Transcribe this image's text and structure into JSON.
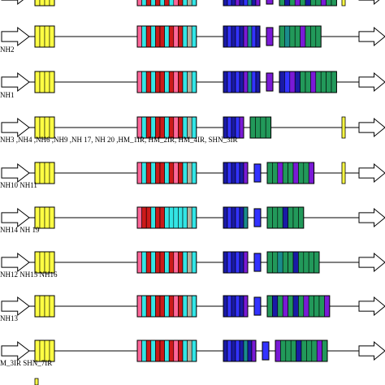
{
  "colors": {
    "yellow": "#ffff44",
    "cyan": "#33e5e5",
    "red": "#cc1a1a",
    "pink": "#ff6699",
    "gray": "#b3b3a0",
    "navy": "#1a1aa6",
    "blue": "#3333ff",
    "purple": "#7a1ad6",
    "green": "#22995a",
    "teal": "#1a8c8c",
    "line": "#000000"
  },
  "rows": [
    {
      "label": "",
      "yellow": [
        1,
        1,
        1,
        1
      ],
      "b1": [
        "pink",
        "cyan",
        "red",
        "cyan",
        "red",
        "cyan",
        "red",
        "cyan",
        "pink",
        "red",
        "cyan",
        "gray",
        "cyan"
      ],
      "b2": [
        "navy",
        "blue",
        "navy",
        "purple",
        "navy",
        "blue",
        "teal",
        "navy",
        "purple"
      ],
      "b3": [
        "purple"
      ],
      "b4": [
        "green",
        "navy",
        "green",
        "purple",
        "green",
        "navy",
        "green",
        "green",
        "purple",
        "green",
        "green"
      ],
      "tiny": true
    },
    {
      "label": "NH2",
      "b1": [
        "pink",
        "cyan",
        "red",
        "cyan",
        "red",
        "red",
        "cyan",
        "red",
        "pink",
        "red",
        "cyan",
        "gray",
        "cyan"
      ],
      "b2": [
        "navy",
        "blue",
        "navy",
        "blue",
        "navy",
        "purple",
        "teal",
        "blue",
        "navy"
      ],
      "b3": [
        "purple"
      ],
      "b4": [
        "green",
        "teal",
        "green",
        "green",
        "purple",
        "green",
        "green",
        "green"
      ]
    },
    {
      "label": "NH1",
      "b1": [
        "pink",
        "cyan",
        "red",
        "cyan",
        "red",
        "red",
        "cyan",
        "red",
        "pink",
        "red",
        "cyan",
        "gray",
        "cyan"
      ],
      "b2": [
        "navy",
        "blue",
        "navy",
        "blue",
        "navy",
        "purple",
        "teal",
        "blue",
        "navy"
      ],
      "b3": [
        "purple"
      ],
      "b4": [
        "navy",
        "blue",
        "purple",
        "navy",
        "green",
        "green",
        "purple",
        "green",
        "green",
        "green",
        "green"
      ]
    },
    {
      "label": "NH3 ,NH4 ,NH6 ,NH9 ,NH 17, NH 20 ,HM_1IR, HM_2IR, HM_4IR, SHN_3IR",
      "b1": [
        "pink",
        "cyan",
        "red",
        "cyan",
        "red",
        "red",
        "cyan",
        "red",
        "pink",
        "red",
        "cyan",
        "gray",
        "cyan"
      ],
      "b2": [
        "navy",
        "blue",
        "navy",
        "blue",
        "purple"
      ],
      "b4": [
        "green",
        "green",
        "green",
        "green"
      ],
      "tiny": true
    },
    {
      "label": "NH10 NH11",
      "b1": [
        "pink",
        "cyan",
        "red",
        "cyan",
        "red",
        "red",
        "cyan",
        "red",
        "pink",
        "red",
        "cyan",
        "gray",
        "cyan"
      ],
      "b2": [
        "navy",
        "blue",
        "navy",
        "blue",
        "navy",
        "purple"
      ],
      "b3": [
        "blue"
      ],
      "b4": [
        "green",
        "green",
        "purple",
        "green",
        "green",
        "purple",
        "green",
        "green",
        "purple"
      ],
      "tiny": true
    },
    {
      "label": "NH14 NH 19",
      "b1": [
        "pink",
        "red",
        "red",
        "cyan",
        "red",
        "red",
        "cyan",
        "cyan",
        "cyan",
        "cyan",
        "cyan",
        "gray",
        "cyan"
      ],
      "b2": [
        "navy",
        "blue",
        "navy",
        "blue",
        "navy",
        "teal"
      ],
      "b3": [
        "blue"
      ],
      "b4": [
        "green",
        "green",
        "green",
        "navy",
        "green",
        "green",
        "green"
      ]
    },
    {
      "label": "NH12 NH15 NH16",
      "b1": [
        "pink",
        "cyan",
        "red",
        "cyan",
        "red",
        "red",
        "cyan",
        "red",
        "pink",
        "red",
        "cyan",
        "gray",
        "cyan"
      ],
      "b2": [
        "navy",
        "blue",
        "navy",
        "blue",
        "navy",
        "purple"
      ],
      "b3": [
        "blue"
      ],
      "b4": [
        "green",
        "green",
        "teal",
        "green",
        "green",
        "navy",
        "green",
        "green",
        "green",
        "green"
      ]
    },
    {
      "label": "NH13",
      "b1": [
        "pink",
        "cyan",
        "red",
        "cyan",
        "red",
        "red",
        "cyan",
        "red",
        "pink",
        "red",
        "cyan",
        "gray",
        "cyan"
      ],
      "b2": [
        "navy",
        "blue",
        "navy",
        "blue",
        "navy",
        "purple"
      ],
      "b3": [
        "blue"
      ],
      "b4": [
        "green",
        "navy",
        "green",
        "purple",
        "green",
        "navy",
        "green",
        "purple",
        "green",
        "green",
        "green",
        "purple"
      ]
    },
    {
      "label": "M_3IR SHN_7IR",
      "b1": [
        "pink",
        "cyan",
        "red",
        "cyan",
        "red",
        "red",
        "cyan",
        "red",
        "pink",
        "red",
        "cyan",
        "gray",
        "cyan"
      ],
      "b2": [
        "navy",
        "blue",
        "navy",
        "blue",
        "navy",
        "teal",
        "navy",
        "purple"
      ],
      "b3": [
        "blue"
      ],
      "b4": [
        "purple",
        "green",
        "green",
        "green",
        "navy",
        "green",
        "green",
        "green",
        "purple",
        "green"
      ]
    }
  ]
}
